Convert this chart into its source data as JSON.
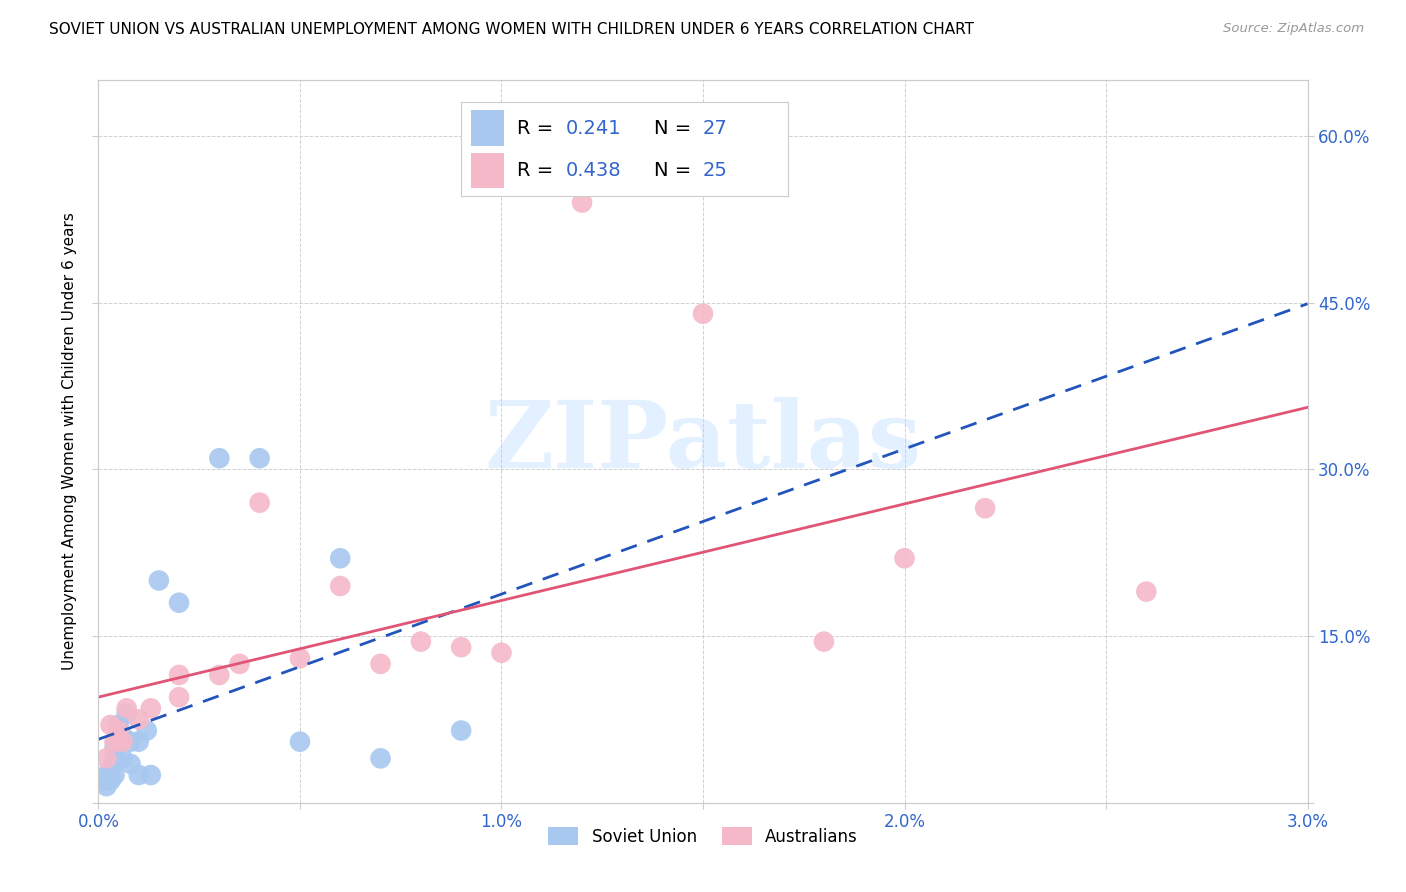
{
  "title": "SOVIET UNION VS AUSTRALIAN UNEMPLOYMENT AMONG WOMEN WITH CHILDREN UNDER 6 YEARS CORRELATION CHART",
  "source": "Source: ZipAtlas.com",
  "ylabel": "Unemployment Among Women with Children Under 6 years",
  "xlim": [
    0.0,
    0.03
  ],
  "ylim": [
    0.0,
    0.65
  ],
  "xticks": [
    0.0,
    0.005,
    0.01,
    0.015,
    0.02,
    0.025,
    0.03
  ],
  "xticklabels": [
    "0.0%",
    "",
    "1.0%",
    "",
    "2.0%",
    "",
    "3.0%"
  ],
  "yticks": [
    0.0,
    0.15,
    0.3,
    0.45,
    0.6
  ],
  "yticklabels_right": [
    "",
    "15.0%",
    "30.0%",
    "45.0%",
    "60.0%"
  ],
  "background_color": "#ffffff",
  "grid_color": "#d0d0d0",
  "soviet_color": "#a8c8f0",
  "australian_color": "#f5b8c8",
  "soviet_line_color": "#2255bb",
  "australian_line_color": "#e05575",
  "R_soviet": 0.241,
  "N_soviet": 27,
  "R_australian": 0.438,
  "N_australian": 25,
  "legend_label_soviet": "Soviet Union",
  "legend_label_australian": "Australians",
  "soviet_x": [
    0.0001,
    0.0002,
    0.0002,
    0.0003,
    0.0003,
    0.0004,
    0.0004,
    0.0004,
    0.0005,
    0.0005,
    0.0006,
    0.0006,
    0.0007,
    0.0008,
    0.0008,
    0.001,
    0.001,
    0.0012,
    0.0013,
    0.0015,
    0.002,
    0.003,
    0.004,
    0.005,
    0.006,
    0.007,
    0.009
  ],
  "soviet_y": [
    0.02,
    0.025,
    0.015,
    0.03,
    0.02,
    0.05,
    0.04,
    0.025,
    0.065,
    0.07,
    0.06,
    0.04,
    0.08,
    0.035,
    0.055,
    0.055,
    0.025,
    0.065,
    0.025,
    0.2,
    0.18,
    0.31,
    0.31,
    0.055,
    0.22,
    0.04,
    0.065
  ],
  "australian_x": [
    0.0002,
    0.0003,
    0.0004,
    0.0005,
    0.0006,
    0.0007,
    0.001,
    0.0013,
    0.002,
    0.002,
    0.003,
    0.0035,
    0.004,
    0.005,
    0.006,
    0.007,
    0.008,
    0.009,
    0.01,
    0.012,
    0.015,
    0.018,
    0.02,
    0.022,
    0.026
  ],
  "australian_y": [
    0.04,
    0.07,
    0.055,
    0.065,
    0.055,
    0.085,
    0.075,
    0.085,
    0.115,
    0.095,
    0.115,
    0.125,
    0.27,
    0.13,
    0.195,
    0.125,
    0.145,
    0.14,
    0.135,
    0.54,
    0.44,
    0.145,
    0.22,
    0.265,
    0.19
  ],
  "title_fontsize": 11,
  "axis_label_fontsize": 11,
  "tick_fontsize": 12,
  "legend_fontsize": 14,
  "watermark_text": "ZIPatlas",
  "watermark_color": "#ddeeff"
}
